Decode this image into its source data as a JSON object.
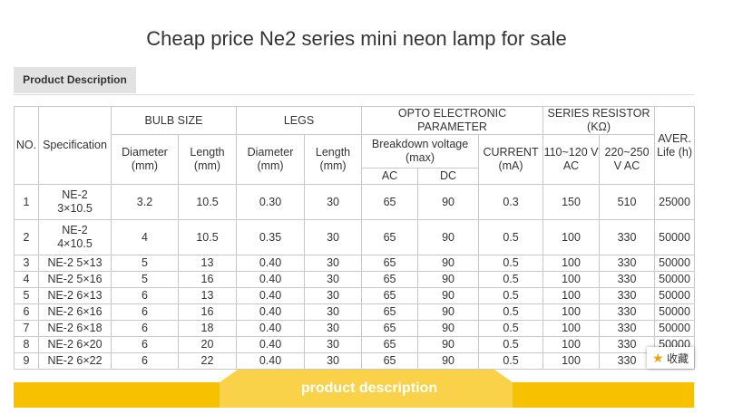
{
  "title": "Cheap price Ne2 series mini neon lamp for sale",
  "tab": "Product Description",
  "table": {
    "header": {
      "no": "NO.",
      "spec": "Specification",
      "bulb": "BULB SIZE",
      "legs": "LEGS",
      "opto": "OPTO ELECTRONIC PARAMETER",
      "resistor": "SERIES RESISTOR (KΩ)",
      "life": "AVER. Life (h)",
      "bulb_diameter": "Diameter (mm)",
      "bulb_length": "Length (mm)",
      "legs_diameter": "Diameter (mm)",
      "legs_length": "Length (mm)",
      "breakdown": "Breakdown voltage (max)",
      "current": "CURRENT (mA)",
      "r110": "110~120 V AC",
      "r220": "220~250 V AC",
      "ac": "AC",
      "dc": "DC"
    },
    "rows": [
      [
        "1",
        "NE-2 3×10.5",
        "3.2",
        "10.5",
        "0.30",
        "30",
        "65",
        "90",
        "0.3",
        "150",
        "510",
        "25000"
      ],
      [
        "2",
        "NE-2 4×10.5",
        "4",
        "10.5",
        "0.35",
        "30",
        "65",
        "90",
        "0.5",
        "100",
        "330",
        "50000"
      ],
      [
        "3",
        "NE-2 5×13",
        "5",
        "13",
        "0.40",
        "30",
        "65",
        "90",
        "0.5",
        "100",
        "330",
        "50000"
      ],
      [
        "4",
        "NE-2 5×16",
        "5",
        "16",
        "0.40",
        "30",
        "65",
        "90",
        "0.5",
        "100",
        "330",
        "50000"
      ],
      [
        "5",
        "NE-2 6×13",
        "6",
        "13",
        "0.40",
        "30",
        "65",
        "90",
        "0.5",
        "100",
        "330",
        "50000"
      ],
      [
        "6",
        "NE-2 6×16",
        "6",
        "16",
        "0.40",
        "30",
        "65",
        "90",
        "0.5",
        "100",
        "330",
        "50000"
      ],
      [
        "7",
        "NE-2 6×18",
        "6",
        "18",
        "0.40",
        "30",
        "65",
        "90",
        "0.5",
        "100",
        "330",
        "50000"
      ],
      [
        "8",
        "NE-2 6×20",
        "6",
        "20",
        "0.40",
        "30",
        "65",
        "90",
        "0.5",
        "100",
        "330",
        "50000"
      ],
      [
        "9",
        "NE-2 6×22",
        "6",
        "22",
        "0.40",
        "30",
        "65",
        "90",
        "0.5",
        "100",
        "330",
        "50000"
      ]
    ]
  },
  "favorite": "收藏",
  "banner": "product description"
}
